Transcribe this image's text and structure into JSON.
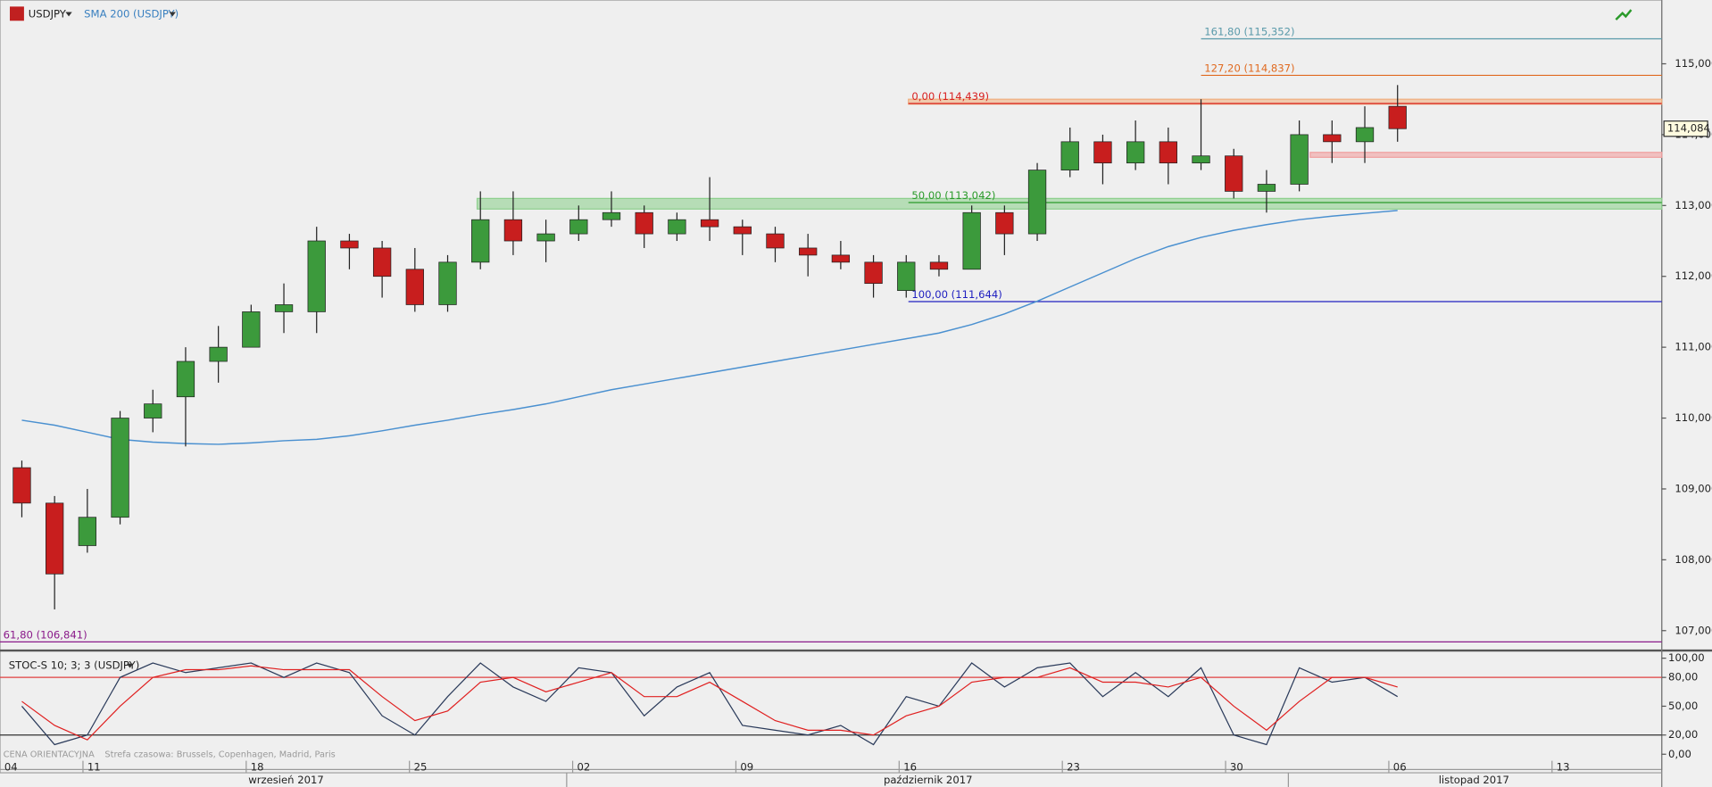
{
  "chart_data": {
    "type": "candlestick",
    "symbol": "USDJPY",
    "indicator_label": "SMA 200 (USDJPY)",
    "oscillator_label": "STOC-S 10; 3; 3 (USDJPY)",
    "footer_label": "CENA ORIENTACYJNA",
    "timezone_label": "Strefa czasowa: Brussels, Copenhagen, Madrid, Paris",
    "x_labels": [
      "04",
      "11",
      "18",
      "25",
      "02",
      "09",
      "16",
      "23",
      "30",
      "06",
      "13"
    ],
    "month_labels": [
      "wrzesień 2017",
      "październik 2017",
      "listopad 2017"
    ],
    "open": [
      109.3,
      108.8,
      108.2,
      108.6,
      110.0,
      110.3,
      110.8,
      111.0,
      111.5,
      111.5,
      112.5,
      112.4,
      112.1,
      111.6,
      112.2,
      112.8,
      112.5,
      112.6,
      112.8,
      112.9,
      112.6,
      112.8,
      112.7,
      112.6,
      112.4,
      112.3,
      112.2,
      111.8,
      112.2,
      112.1,
      112.9,
      112.6,
      113.5,
      113.9,
      113.6,
      113.9,
      113.6,
      113.7,
      113.2,
      113.3,
      114.0,
      113.9,
      114.4
    ],
    "high": [
      109.4,
      108.9,
      109.0,
      110.1,
      110.4,
      111.0,
      111.3,
      111.6,
      111.9,
      112.7,
      112.6,
      112.5,
      112.4,
      112.3,
      113.2,
      113.2,
      112.8,
      113.0,
      113.2,
      113.0,
      112.9,
      113.4,
      112.8,
      112.7,
      112.6,
      112.5,
      112.3,
      112.3,
      112.3,
      113.0,
      113.0,
      113.6,
      114.1,
      114.0,
      114.2,
      114.1,
      114.5,
      113.8,
      113.5,
      114.2,
      114.2,
      114.4,
      114.7
    ],
    "low": [
      108.6,
      107.3,
      108.1,
      108.5,
      109.8,
      109.6,
      110.5,
      111.0,
      111.2,
      111.2,
      112.1,
      111.7,
      111.5,
      111.5,
      112.1,
      112.3,
      112.2,
      112.5,
      112.7,
      112.4,
      112.5,
      112.5,
      112.3,
      112.2,
      112.0,
      112.1,
      111.7,
      111.7,
      112.0,
      112.1,
      112.3,
      112.5,
      113.4,
      113.3,
      113.5,
      113.3,
      113.5,
      113.1,
      112.9,
      113.2,
      113.6,
      113.6,
      113.9
    ],
    "close": [
      108.8,
      107.8,
      108.6,
      110.0,
      110.2,
      110.8,
      111.0,
      111.5,
      111.6,
      112.5,
      112.4,
      112.0,
      111.6,
      112.2,
      112.8,
      112.5,
      112.6,
      112.8,
      112.9,
      112.6,
      112.8,
      112.7,
      112.6,
      112.4,
      112.3,
      112.2,
      111.9,
      112.2,
      112.1,
      112.9,
      112.6,
      113.5,
      113.9,
      113.6,
      113.9,
      113.6,
      113.7,
      113.2,
      113.3,
      114.0,
      113.9,
      114.1,
      114.084
    ],
    "sma": [
      109.97,
      109.9,
      109.8,
      109.7,
      109.66,
      109.64,
      109.63,
      109.65,
      109.68,
      109.7,
      109.75,
      109.82,
      109.9,
      109.97,
      110.05,
      110.12,
      110.2,
      110.3,
      110.4,
      110.48,
      110.56,
      110.64,
      110.72,
      110.8,
      110.88,
      110.96,
      111.04,
      111.12,
      111.2,
      111.32,
      111.47,
      111.65,
      111.85,
      112.05,
      112.25,
      112.42,
      112.55,
      112.65,
      112.73,
      112.8,
      112.85,
      112.89,
      112.93
    ],
    "sma_color": "#4a90d0",
    "up_color": "#3c9a3c",
    "down_color": "#c81e1e",
    "ylim": [
      106.75,
      115.9
    ],
    "yticks": [
      {
        "value": 107,
        "label": "107,000"
      },
      {
        "value": 108,
        "label": "108,000"
      },
      {
        "value": 109,
        "label": "109,000"
      },
      {
        "value": 110,
        "label": "110,000"
      },
      {
        "value": 111,
        "label": "111,000"
      },
      {
        "value": 112,
        "label": "112,000"
      },
      {
        "value": 113,
        "label": "113,000"
      },
      {
        "value": 114,
        "label": "114,000"
      },
      {
        "value": 115,
        "label": "115,000"
      }
    ],
    "last_price": {
      "value": 114.084,
      "label": "114,084"
    },
    "fib_levels": [
      {
        "value": 115.352,
        "label": "161,80 (115,352)",
        "color": "#5a9aaa"
      },
      {
        "value": 114.837,
        "label": "127,20 (114,837)",
        "color": "#e06a20"
      },
      {
        "value": 114.439,
        "label": "0,00 (114,439)",
        "color": "#d82020"
      },
      {
        "value": 113.042,
        "label": "50,00 (113,042)",
        "color": "#2a9a2a"
      },
      {
        "value": 111.644,
        "label": "100,00 (111,644)",
        "color": "#2020c0"
      },
      {
        "value": 106.841,
        "label": "61,80 (106,841)",
        "color": "#8a1a8a"
      }
    ],
    "zones": [
      {
        "low": 112.95,
        "high": 113.1,
        "color": "#8fd08f"
      },
      {
        "low": 113.68,
        "high": 113.75,
        "color": "#f0a0a0"
      },
      {
        "low": 114.43,
        "high": 114.5,
        "color": "#f0b080"
      }
    ],
    "stoch": {
      "ylim": [
        0,
        100
      ],
      "yticks": [
        {
          "value": 0,
          "label": "0,00"
        },
        {
          "value": 20,
          "label": "20,00"
        },
        {
          "value": 50,
          "label": "50,00"
        },
        {
          "value": 80,
          "label": "80,00"
        },
        {
          "value": 100,
          "label": "100,00"
        }
      ],
      "series": [
        {
          "color": "#2a3a5a",
          "values": [
            50,
            10,
            20,
            80,
            95,
            85,
            90,
            95,
            80,
            95,
            85,
            40,
            20,
            60,
            95,
            70,
            55,
            90,
            85,
            40,
            70,
            85,
            30,
            25,
            20,
            30,
            10,
            60,
            50,
            95,
            70,
            90,
            95,
            60,
            85,
            60,
            90,
            20,
            10,
            90,
            75,
            80,
            60
          ]
        },
        {
          "color": "#e02020",
          "values": [
            55,
            30,
            15,
            50,
            80,
            88,
            88,
            92,
            88,
            88,
            88,
            60,
            35,
            45,
            75,
            80,
            65,
            75,
            85,
            60,
            60,
            75,
            55,
            35,
            25,
            25,
            20,
            40,
            50,
            75,
            80,
            80,
            90,
            75,
            75,
            70,
            80,
            50,
            25,
            55,
            80,
            80,
            70
          ]
        }
      ]
    }
  }
}
